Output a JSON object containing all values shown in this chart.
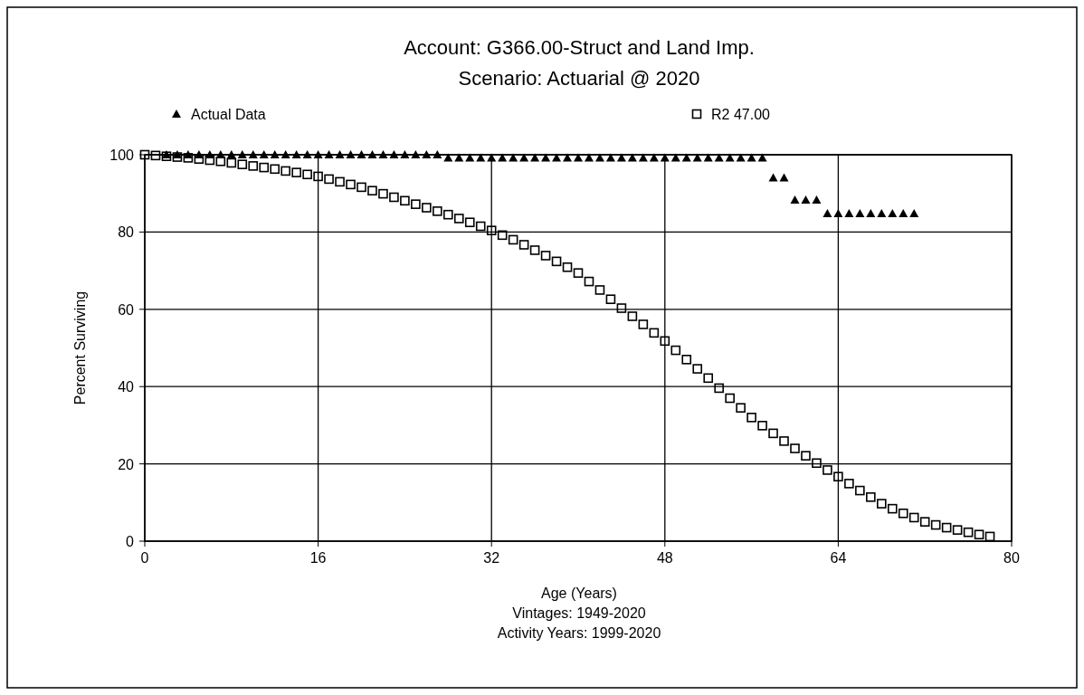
{
  "chart_data": {
    "type": "scatter",
    "title": "Account: G366.00-Struct and Land Imp.",
    "subtitle": "Scenario: Actuarial @ 2020",
    "xlabel": "Age (Years)",
    "ylabel": "Percent Surviving",
    "annotations": [
      "Vintages: 1949-2020",
      "Activity Years: 1999-2020"
    ],
    "xlim": [
      0,
      80
    ],
    "xticks": [
      0,
      16,
      32,
      48,
      64,
      80
    ],
    "ylim": [
      0,
      100
    ],
    "yticks": [
      0,
      20,
      40,
      60,
      80,
      100
    ],
    "grid": true,
    "legend": "top",
    "series": [
      {
        "name": "Actual Data",
        "color": "#000000",
        "marker": "triangle",
        "x": [
          2,
          3,
          4,
          5,
          6,
          7,
          8,
          9,
          10,
          11,
          12,
          13,
          14,
          15,
          16,
          17,
          18,
          19,
          20,
          21,
          22,
          23,
          24,
          25,
          26,
          27,
          28,
          29,
          30,
          31,
          32,
          33,
          34,
          35,
          36,
          37,
          38,
          39,
          40,
          41,
          42,
          43,
          44,
          45,
          46,
          47,
          48,
          49,
          50,
          51,
          52,
          53,
          54,
          55,
          56,
          57,
          58,
          59,
          60,
          61,
          62,
          63,
          64,
          65,
          66,
          67,
          68,
          69,
          70,
          71
        ],
        "values": [
          100,
          100,
          100,
          100,
          100,
          100,
          100,
          100,
          100,
          100,
          100,
          100,
          100,
          100,
          100,
          100,
          100,
          100,
          100,
          100,
          100,
          100,
          100,
          100,
          100,
          100,
          99.2,
          99.2,
          99.2,
          99.2,
          99.2,
          99.2,
          99.2,
          99.2,
          99.2,
          99.2,
          99.2,
          99.2,
          99.2,
          99.2,
          99.2,
          99.2,
          99.2,
          99.2,
          99.2,
          99.2,
          99.2,
          99.2,
          99.2,
          99.2,
          99.2,
          99.2,
          99.2,
          99.2,
          99.2,
          99.2,
          94,
          94,
          88.3,
          88.3,
          88.3,
          84.8,
          84.8,
          84.8,
          84.8,
          84.8,
          84.8,
          84.8,
          84.8,
          84.8
        ]
      },
      {
        "name": "R2 47.00",
        "color": "#000000",
        "marker": "square",
        "x": [
          0,
          1,
          2,
          3,
          4,
          5,
          6,
          7,
          8,
          9,
          10,
          11,
          12,
          13,
          14,
          15,
          16,
          17,
          18,
          19,
          20,
          21,
          22,
          23,
          24,
          25,
          26,
          27,
          28,
          29,
          30,
          31,
          32,
          33,
          34,
          35,
          36,
          37,
          38,
          39,
          40,
          41,
          42,
          43,
          44,
          45,
          46,
          47,
          48,
          49,
          50,
          51,
          52,
          53,
          54,
          55,
          56,
          57,
          58,
          59,
          60,
          61,
          62,
          63,
          64,
          65,
          66,
          67,
          68,
          69,
          70,
          71,
          72,
          73,
          74,
          75,
          76,
          77,
          78
        ],
        "values": [
          100,
          99.8,
          99.6,
          99.4,
          99.2,
          98.9,
          98.6,
          98.3,
          97.9,
          97.5,
          97.1,
          96.7,
          96.3,
          95.8,
          95.4,
          94.9,
          94.4,
          93.7,
          93,
          92.3,
          91.6,
          90.7,
          89.9,
          89,
          88.1,
          87.2,
          86.3,
          85.4,
          84.5,
          83.5,
          82.5,
          81.5,
          80.4,
          79.2,
          78,
          76.7,
          75.3,
          73.9,
          72.4,
          70.9,
          69.4,
          67.2,
          65,
          62.6,
          60.3,
          58.2,
          56.1,
          53.9,
          51.8,
          49.4,
          47,
          44.6,
          42.2,
          39.6,
          37,
          34.5,
          32,
          29.9,
          27.9,
          25.9,
          24,
          22.1,
          20.2,
          18.4,
          16.7,
          14.9,
          13.1,
          11.4,
          9.7,
          8.4,
          7.2,
          6.1,
          5,
          4.2,
          3.5,
          2.9,
          2.3,
          1.7,
          1.2
        ]
      }
    ]
  }
}
